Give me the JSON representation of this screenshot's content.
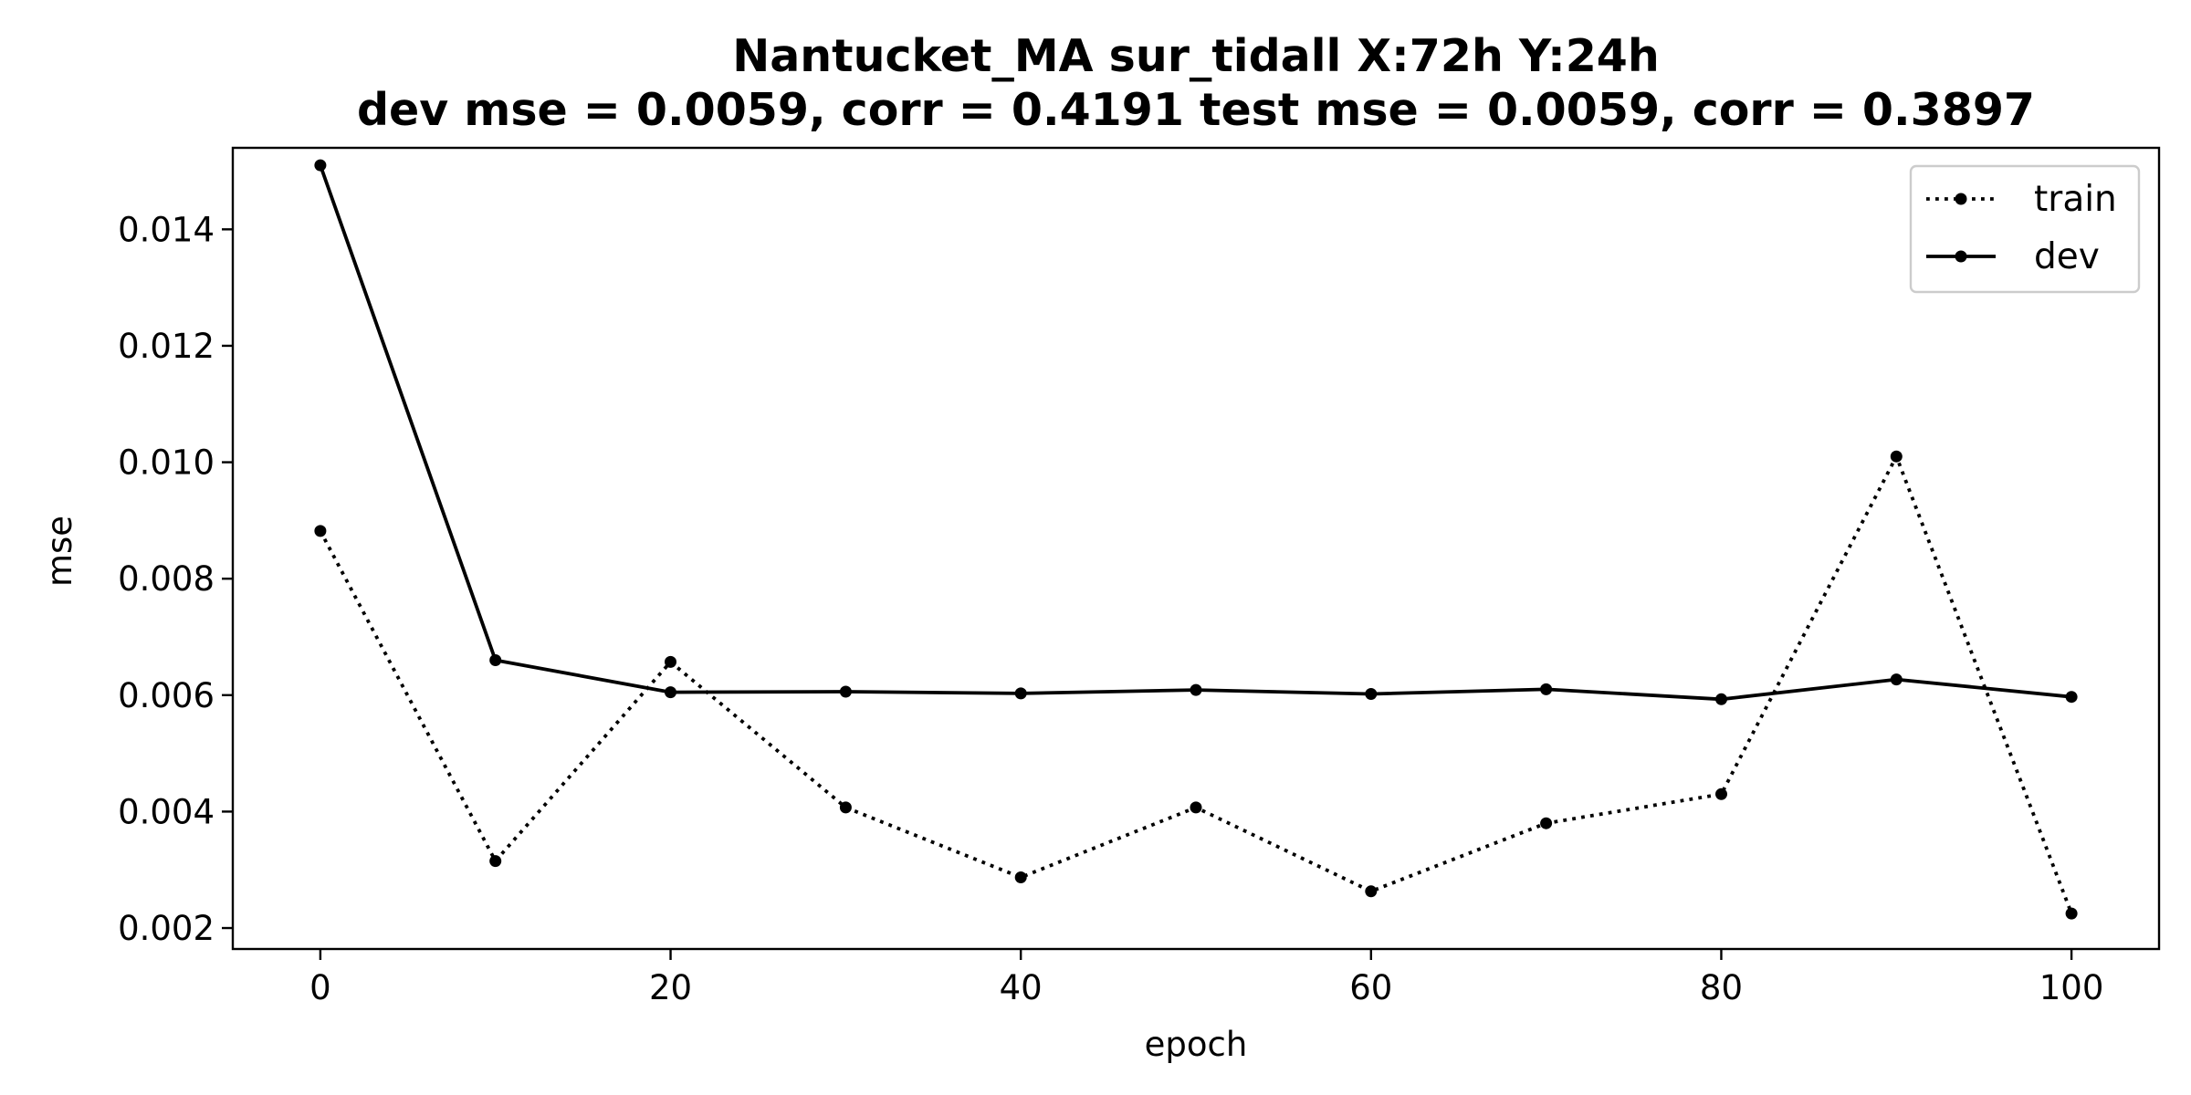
{
  "chart_data": {
    "type": "line",
    "title_line1": "Nantucket_MA   sur_tidall   X:72h   Y:24h",
    "title_line2": "dev mse = 0.0059, corr = 0.4191   test mse = 0.0059, corr = 0.3897",
    "xlabel": "epoch",
    "ylabel": "mse",
    "xlim": [
      -5,
      105
    ],
    "ylim": [
      0.00164,
      0.0154
    ],
    "x_ticks": [
      0,
      20,
      40,
      60,
      80,
      100
    ],
    "x_tick_labels": [
      "0",
      "20",
      "40",
      "60",
      "80",
      "100"
    ],
    "y_ticks": [
      0.002,
      0.004,
      0.006,
      0.008,
      0.01,
      0.012,
      0.014
    ],
    "y_tick_labels": [
      "0.002",
      "0.004",
      "0.006",
      "0.008",
      "0.010",
      "0.012",
      "0.014"
    ],
    "x": [
      0,
      10,
      20,
      30,
      40,
      50,
      60,
      70,
      80,
      90,
      100
    ],
    "series": [
      {
        "name": "train",
        "style": "dotted",
        "color": "#000000",
        "values": [
          0.00882,
          0.00315,
          0.00657,
          0.00407,
          0.00287,
          0.00407,
          0.00263,
          0.0038,
          0.0043,
          0.0101,
          0.00225
        ]
      },
      {
        "name": "dev",
        "style": "solid",
        "color": "#000000",
        "values": [
          0.0151,
          0.0066,
          0.00605,
          0.00606,
          0.00603,
          0.00609,
          0.00602,
          0.0061,
          0.00593,
          0.00627,
          0.00597
        ]
      }
    ],
    "grid": false,
    "legend_position": "top-right"
  }
}
